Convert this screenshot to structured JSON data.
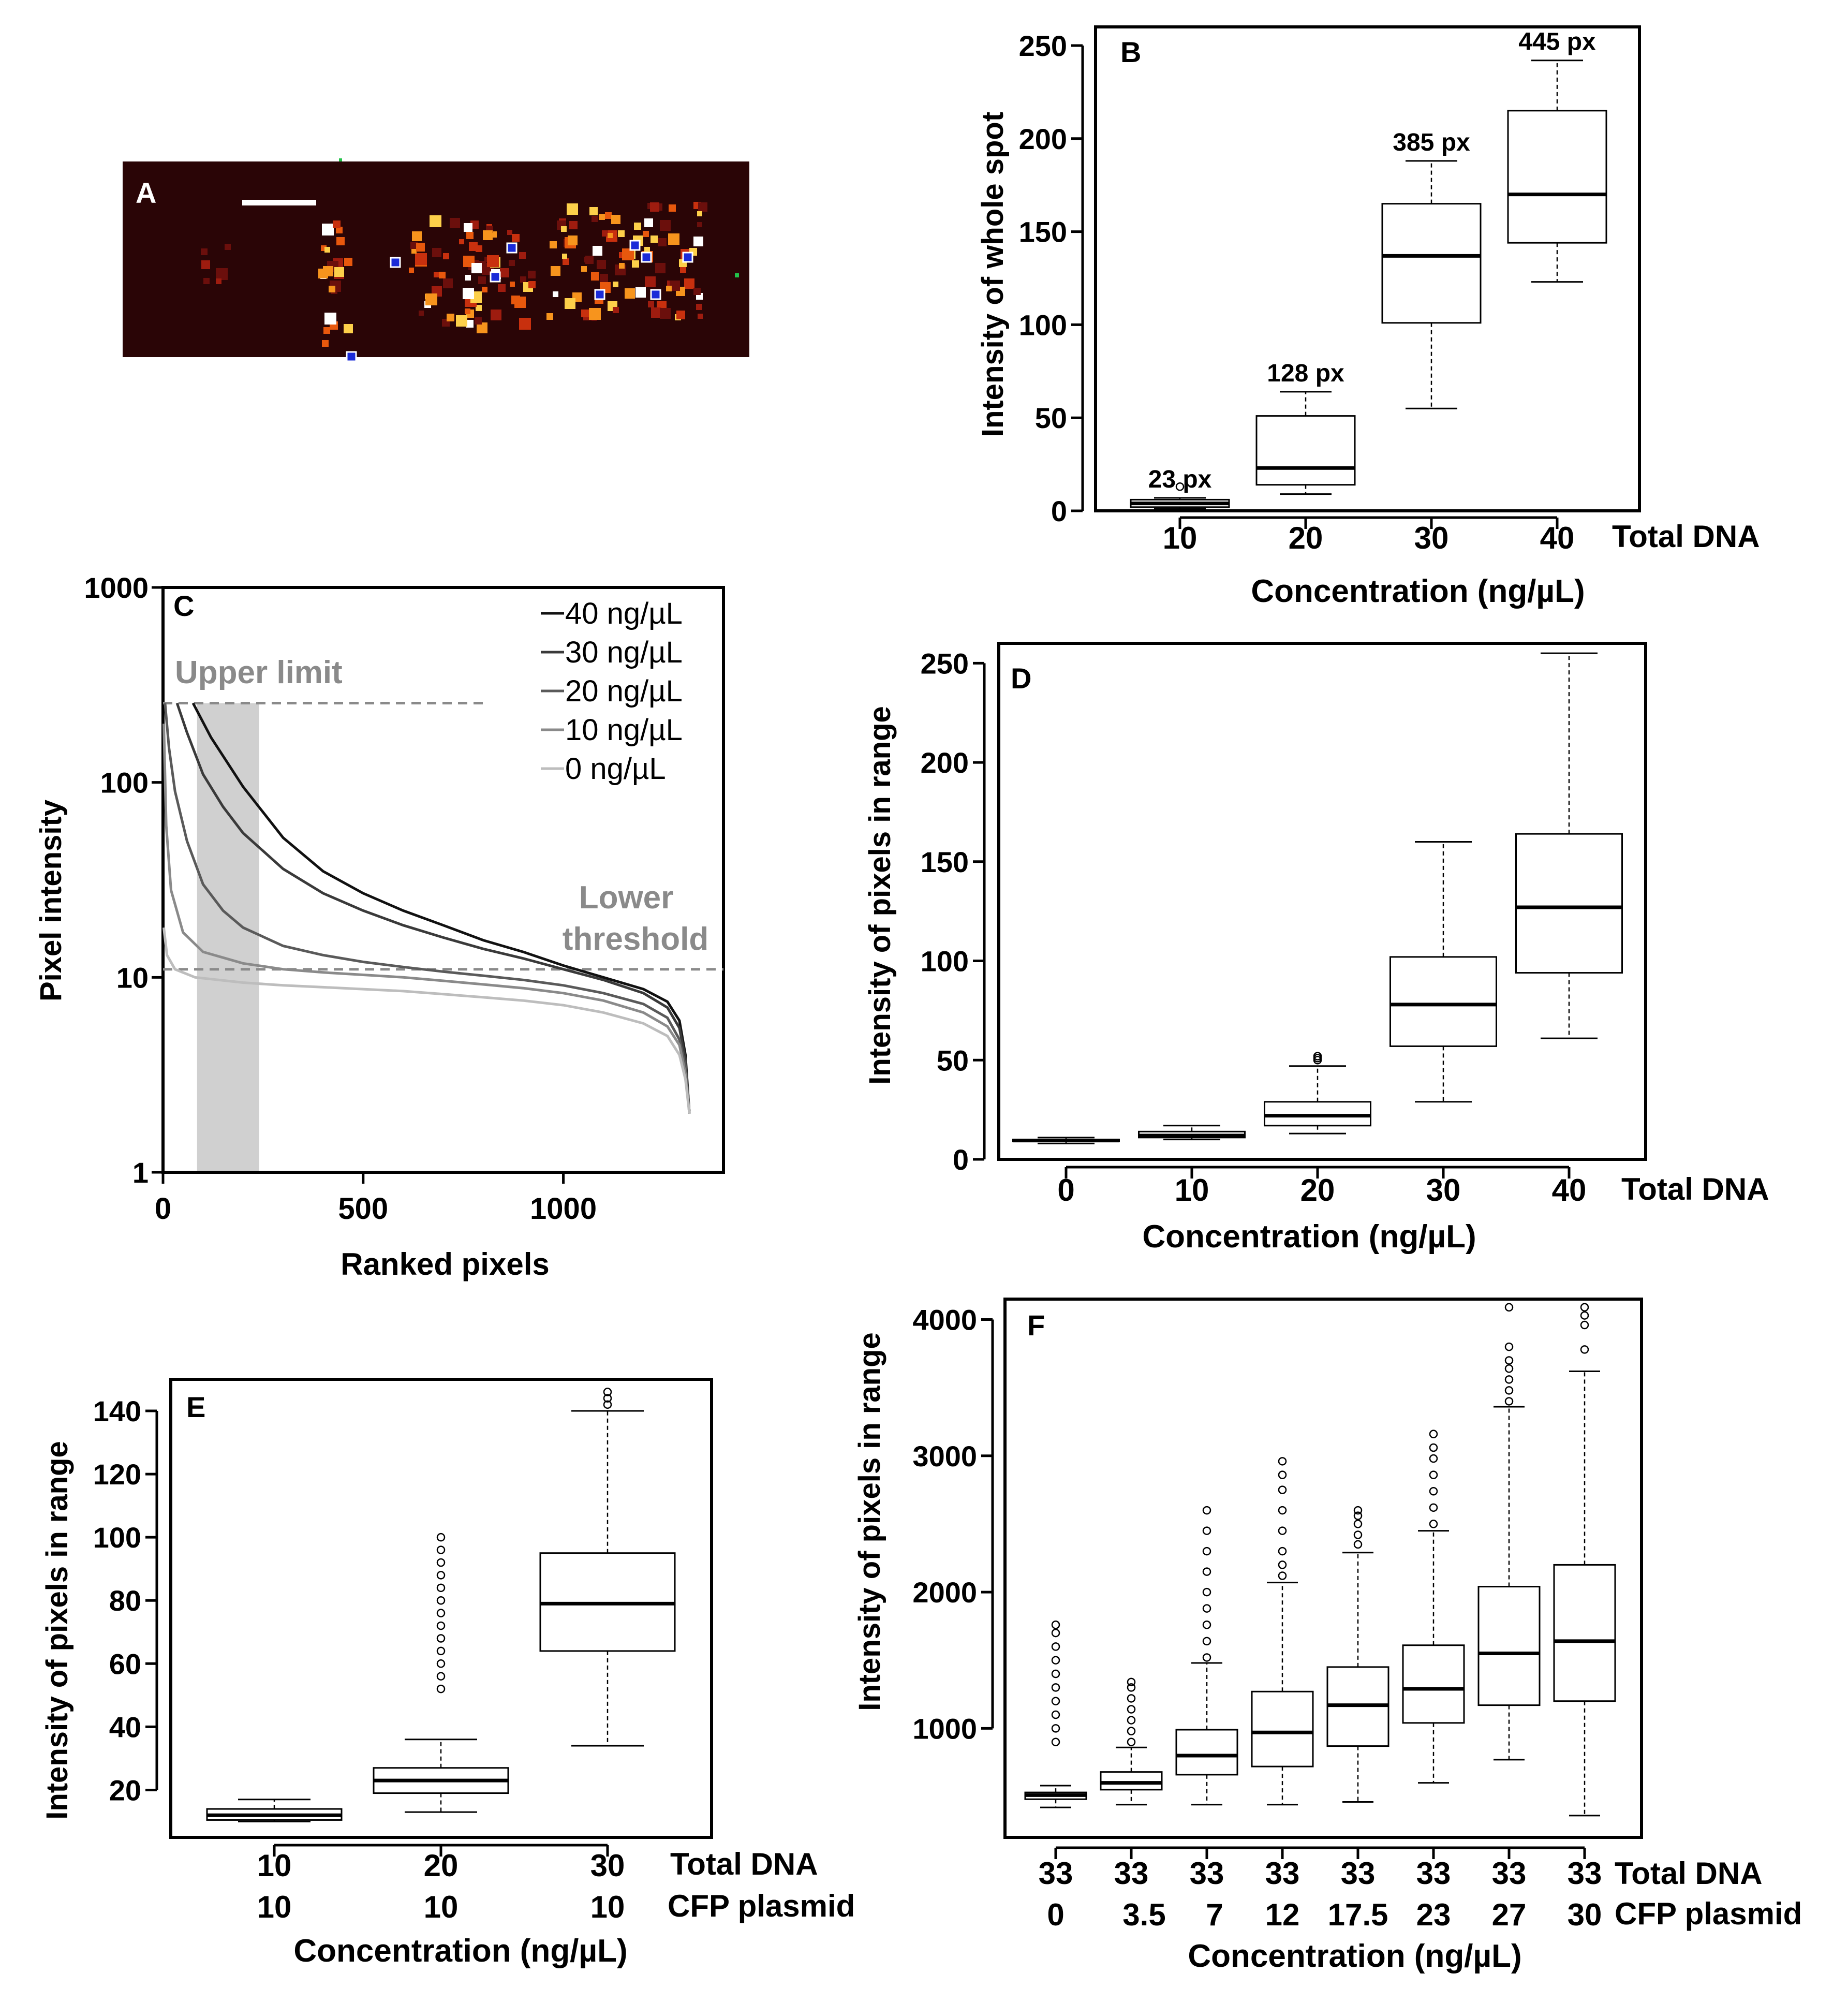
{
  "panels": {
    "A": {
      "letter": "A"
    },
    "B": {
      "letter": "B"
    },
    "C": {
      "letter": "C",
      "upper_label": "Upper limit",
      "lower_label_1": "Lower",
      "lower_label_2": "threshold"
    },
    "D": {
      "letter": "D"
    },
    "E": {
      "letter": "E"
    },
    "F": {
      "letter": "F"
    }
  },
  "colors": {
    "heat_bg": "#2a0506",
    "heat_hot": "#ffffff",
    "heat_blue": "#1a2bd8",
    "axis": "#000000",
    "guide": "#888888",
    "shade": "#d0d0d0"
  },
  "chart_data": [
    {
      "panel": "B",
      "type": "box",
      "categories": [
        "10",
        "20",
        "30",
        "40"
      ],
      "category_row_label": "Total DNA",
      "xlabel": "Concentration (ng/µL)",
      "ylabel": "Intensity of whole spot",
      "ylim": [
        0,
        260
      ],
      "yticks": [
        0,
        50,
        100,
        150,
        200,
        250
      ],
      "box_labels": [
        "23 px",
        "128 px",
        "385 px",
        "445 px"
      ],
      "boxes": [
        {
          "min": 1,
          "q1": 2,
          "median": 4,
          "q3": 6,
          "max": 7,
          "outliers": [
            13
          ]
        },
        {
          "min": 9,
          "q1": 14,
          "median": 23,
          "q3": 51,
          "max": 64,
          "outliers": []
        },
        {
          "min": 55,
          "q1": 101,
          "median": 137,
          "q3": 165,
          "max": 188,
          "outliers": []
        },
        {
          "min": 123,
          "q1": 144,
          "median": 170,
          "q3": 215,
          "max": 242,
          "outliers": []
        }
      ]
    },
    {
      "panel": "C",
      "type": "line",
      "xlabel": "Ranked pixels",
      "ylabel": "Pixel intensity",
      "xlim": [
        0,
        1400
      ],
      "ylim": [
        1,
        1000
      ],
      "yscale": "log",
      "xticks": [
        0,
        500,
        1000
      ],
      "yticks": [
        1,
        10,
        100,
        1000
      ],
      "upper_limit": 255,
      "lower_threshold": 11,
      "shaded_x": [
        85,
        240
      ],
      "legend": "top-right",
      "series": [
        {
          "name": "40 ng/µL",
          "color": "#111111",
          "points": [
            [
              75,
              255
            ],
            [
              120,
              170
            ],
            [
              200,
              95
            ],
            [
              300,
              52
            ],
            [
              400,
              35
            ],
            [
              500,
              27
            ],
            [
              600,
              22
            ],
            [
              700,
              18.5
            ],
            [
              800,
              15.5
            ],
            [
              900,
              13.5
            ],
            [
              1000,
              11.5
            ],
            [
              1100,
              10
            ],
            [
              1200,
              8.7
            ],
            [
              1260,
              7.5
            ],
            [
              1290,
              6
            ],
            [
              1305,
              4
            ],
            [
              1315,
              2
            ]
          ]
        },
        {
          "name": "30 ng/µL",
          "color": "#3a3a3a",
          "points": [
            [
              35,
              255
            ],
            [
              60,
              180
            ],
            [
              100,
              110
            ],
            [
              150,
              75
            ],
            [
              200,
              55
            ],
            [
              300,
              36
            ],
            [
              400,
              27
            ],
            [
              500,
              22
            ],
            [
              600,
              18.5
            ],
            [
              700,
              16
            ],
            [
              800,
              14
            ],
            [
              900,
              12.5
            ],
            [
              1000,
              11
            ],
            [
              1100,
              9.7
            ],
            [
              1200,
              8.3
            ],
            [
              1260,
              7
            ],
            [
              1290,
              5.5
            ],
            [
              1305,
              3.8
            ],
            [
              1315,
              2
            ]
          ]
        },
        {
          "name": "20 ng/µL",
          "color": "#5a5a5a",
          "points": [
            [
              5,
              255
            ],
            [
              15,
              150
            ],
            [
              30,
              90
            ],
            [
              60,
              50
            ],
            [
              100,
              30
            ],
            [
              150,
              22
            ],
            [
              200,
              18
            ],
            [
              300,
              14.5
            ],
            [
              400,
              13
            ],
            [
              500,
              12
            ],
            [
              600,
              11.3
            ],
            [
              700,
              10.7
            ],
            [
              800,
              10.2
            ],
            [
              900,
              9.7
            ],
            [
              1000,
              9.1
            ],
            [
              1100,
              8.3
            ],
            [
              1200,
              7.3
            ],
            [
              1260,
              6.2
            ],
            [
              1290,
              4.8
            ],
            [
              1305,
              3.5
            ],
            [
              1315,
              2
            ]
          ]
        },
        {
          "name": "10 ng/µL",
          "color": "#8a8a8a",
          "points": [
            [
              2,
              200
            ],
            [
              8,
              60
            ],
            [
              20,
              28
            ],
            [
              50,
              17
            ],
            [
              100,
              13.5
            ],
            [
              200,
              11.8
            ],
            [
              300,
              11
            ],
            [
              400,
              10.6
            ],
            [
              500,
              10.3
            ],
            [
              600,
              10
            ],
            [
              700,
              9.6
            ],
            [
              800,
              9.2
            ],
            [
              900,
              8.8
            ],
            [
              1000,
              8.3
            ],
            [
              1100,
              7.6
            ],
            [
              1200,
              6.6
            ],
            [
              1260,
              5.6
            ],
            [
              1290,
              4.5
            ],
            [
              1305,
              3.2
            ],
            [
              1315,
              2
            ]
          ]
        },
        {
          "name": "0 ng/µL",
          "color": "#bdbdbd",
          "points": [
            [
              2,
              18
            ],
            [
              10,
              13
            ],
            [
              30,
              11
            ],
            [
              80,
              10
            ],
            [
              200,
              9.4
            ],
            [
              300,
              9.1
            ],
            [
              400,
              8.9
            ],
            [
              500,
              8.7
            ],
            [
              600,
              8.5
            ],
            [
              700,
              8.2
            ],
            [
              800,
              7.9
            ],
            [
              900,
              7.6
            ],
            [
              1000,
              7.2
            ],
            [
              1100,
              6.6
            ],
            [
              1200,
              5.8
            ],
            [
              1260,
              5
            ],
            [
              1290,
              4
            ],
            [
              1305,
              3
            ],
            [
              1315,
              2
            ]
          ]
        }
      ]
    },
    {
      "panel": "D",
      "type": "box",
      "categories": [
        "0",
        "10",
        "20",
        "30",
        "40"
      ],
      "category_row_label": "Total DNA",
      "xlabel": "Concentration (ng/µL)",
      "ylabel": "Intensity of pixels in range",
      "ylim": [
        0,
        260
      ],
      "yticks": [
        0,
        50,
        100,
        150,
        200,
        250
      ],
      "boxes": [
        {
          "min": 8,
          "q1": 9,
          "median": 9.5,
          "q3": 10,
          "max": 11,
          "outliers": []
        },
        {
          "min": 10,
          "q1": 11,
          "median": 12,
          "q3": 14,
          "max": 17,
          "outliers": []
        },
        {
          "min": 13,
          "q1": 17,
          "median": 22,
          "q3": 29,
          "max": 47,
          "outliers": [
            50,
            51,
            52
          ]
        },
        {
          "min": 29,
          "q1": 57,
          "median": 78,
          "q3": 102,
          "max": 160,
          "outliers": []
        },
        {
          "min": 61,
          "q1": 94,
          "median": 127,
          "q3": 164,
          "max": 255,
          "outliers": []
        }
      ]
    },
    {
      "panel": "E",
      "type": "box",
      "categories": [
        "10",
        "20",
        "30"
      ],
      "categories2": [
        "10",
        "10",
        "10"
      ],
      "category_row_label": "Total DNA",
      "category_row_label2": "CFP plasmid",
      "xlabel": "Concentration (ng/µL)",
      "ylabel": "Intensity of pixels in range",
      "ylim": [
        5,
        150
      ],
      "yticks": [
        20,
        40,
        60,
        80,
        100,
        120,
        140
      ],
      "boxes": [
        {
          "min": 10,
          "q1": 10.5,
          "median": 12,
          "q3": 14,
          "max": 17,
          "outliers": []
        },
        {
          "min": 13,
          "q1": 19,
          "median": 23,
          "q3": 27,
          "max": 36,
          "outliers": [
            52,
            56,
            60,
            64,
            68,
            72,
            76,
            80,
            84,
            88,
            92,
            96,
            100
          ]
        },
        {
          "min": 34,
          "q1": 64,
          "median": 79,
          "q3": 95,
          "max": 140,
          "outliers": [
            142,
            144,
            146
          ]
        }
      ]
    },
    {
      "panel": "F",
      "type": "box",
      "categories": [
        "33",
        "33",
        "33",
        "33",
        "33",
        "33",
        "33",
        "33"
      ],
      "categories2": [
        "0",
        "3.5",
        "7",
        "12",
        "17.5",
        "23",
        "27",
        "30"
      ],
      "category_row_label": "Total DNA",
      "category_row_label2": "CFP plasmid",
      "xlabel": "Concentration (ng/µL)",
      "ylabel": "Intensity of pixels in range",
      "ylim": [
        200,
        4150
      ],
      "yticks": [
        1000,
        2000,
        3000,
        4000
      ],
      "boxes": [
        {
          "min": 420,
          "q1": 480,
          "median": 510,
          "q3": 530,
          "max": 580,
          "outliers": [
            900,
            1000,
            1100,
            1200,
            1300,
            1400,
            1500,
            1600,
            1700,
            1760
          ]
        },
        {
          "min": 440,
          "q1": 550,
          "median": 600,
          "q3": 680,
          "max": 860,
          "outliers": [
            900,
            980,
            1060,
            1140,
            1220,
            1300,
            1340
          ]
        },
        {
          "min": 440,
          "q1": 660,
          "median": 800,
          "q3": 990,
          "max": 1480,
          "outliers": [
            1520,
            1640,
            1760,
            1880,
            2000,
            2150,
            2300,
            2450,
            2600
          ]
        },
        {
          "min": 440,
          "q1": 720,
          "median": 970,
          "q3": 1270,
          "max": 2070,
          "outliers": [
            2120,
            2200,
            2300,
            2450,
            2600,
            2750,
            2860,
            2960
          ]
        },
        {
          "min": 460,
          "q1": 870,
          "median": 1170,
          "q3": 1450,
          "max": 2290,
          "outliers": [
            2350,
            2420,
            2500,
            2560,
            2600
          ]
        },
        {
          "min": 600,
          "q1": 1040,
          "median": 1290,
          "q3": 1610,
          "max": 2450,
          "outliers": [
            2500,
            2620,
            2740,
            2860,
            2980,
            3060,
            3160
          ]
        },
        {
          "min": 770,
          "q1": 1170,
          "median": 1550,
          "q3": 2040,
          "max": 3360,
          "outliers": [
            3400,
            3480,
            3560,
            3640,
            3700,
            3800,
            4090
          ]
        },
        {
          "min": 360,
          "q1": 1200,
          "median": 1640,
          "q3": 2200,
          "max": 3620,
          "outliers": [
            3780,
            3960,
            4030,
            4090
          ]
        }
      ]
    }
  ]
}
